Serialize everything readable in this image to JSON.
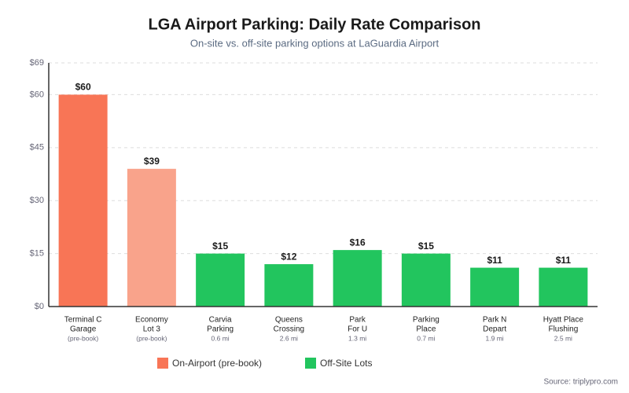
{
  "chart_data": {
    "type": "bar",
    "title": "LGA Airport Parking: Daily Rate Comparison",
    "subtitle": "On-site vs. off-site parking options at LaGuardia Airport",
    "categories": [
      [
        "Terminal C",
        "Garage"
      ],
      [
        "Economy",
        "Lot 3"
      ],
      [
        "Carvia",
        "Parking"
      ],
      [
        "Queens",
        "Crossing"
      ],
      [
        "Park",
        "For U"
      ],
      [
        "Parking",
        "Place"
      ],
      [
        "Park N",
        "Depart"
      ],
      [
        "Hyatt Place",
        "Flushing"
      ]
    ],
    "category_notes": [
      "(pre-book)",
      "(pre-book)",
      "0.6 mi",
      "2.6 mi",
      "1.3 mi",
      "0.7 mi",
      "1.9 mi",
      "2.5 mi"
    ],
    "values": [
      60,
      39,
      15,
      12,
      16,
      15,
      11,
      11
    ],
    "value_labels": [
      "$60",
      "$39",
      "$15",
      "$12",
      "$16",
      "$15",
      "$11",
      "$11"
    ],
    "colors": [
      "#f87556",
      "#f9a38b",
      "#22c55e",
      "#22c55e",
      "#22c55e",
      "#22c55e",
      "#22c55e",
      "#22c55e"
    ],
    "ylim": [
      0,
      69
    ],
    "yticks": [
      {
        "value": 0,
        "label": "$0"
      },
      {
        "value": 15,
        "label": "$15"
      },
      {
        "value": 30,
        "label": "$30"
      },
      {
        "value": 45,
        "label": "$45"
      },
      {
        "value": 60,
        "label": "$60"
      },
      {
        "value": 69,
        "label": "$69"
      }
    ],
    "grid": true,
    "legend": [
      {
        "name": "On-Airport (pre-book)",
        "color": "#f87556"
      },
      {
        "name": "Off-Site Lots",
        "color": "#22c55e"
      }
    ],
    "source": "Source: triplypro.com"
  }
}
